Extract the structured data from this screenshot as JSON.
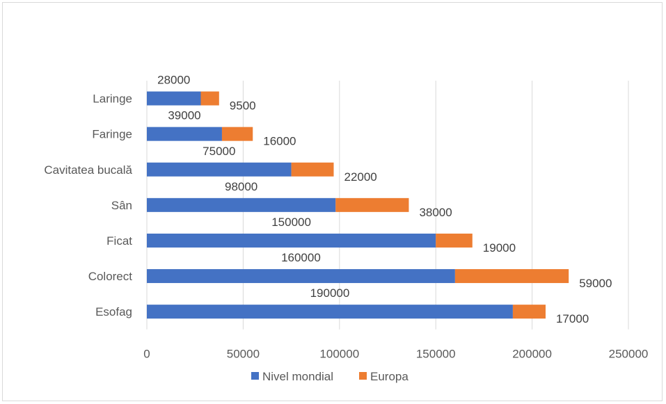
{
  "chart_data": {
    "type": "bar",
    "orientation": "horizontal",
    "stacked": true,
    "categories": [
      "Laringe",
      "Faringe",
      "Cavitatea bucală",
      "Sân",
      "Ficat",
      "Colorect",
      "Esofag"
    ],
    "series": [
      {
        "name": "Nivel mondial",
        "color": "#4472C4",
        "values": [
          28000,
          39000,
          75000,
          98000,
          150000,
          160000,
          190000
        ]
      },
      {
        "name": "Europa",
        "color": "#ED7D31",
        "values": [
          9500,
          16000,
          22000,
          38000,
          19000,
          59000,
          17000
        ]
      }
    ],
    "xlim": [
      0,
      250000
    ],
    "xticks": [
      "0",
      "50000",
      "100000",
      "150000",
      "200000",
      "250000"
    ],
    "grid": "vertical",
    "legend": "bottom"
  }
}
